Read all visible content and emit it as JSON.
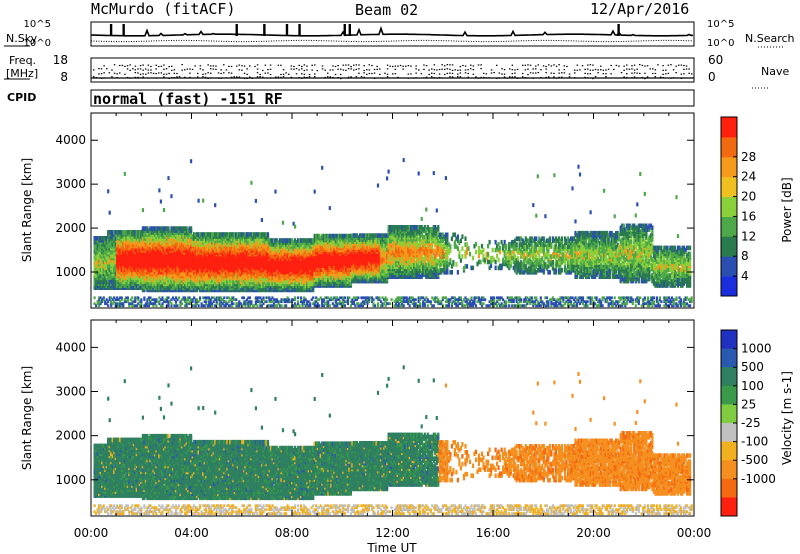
{
  "header": {
    "station": "McMurdo (fitACF)",
    "beam": "Beam 02",
    "date": "12/Apr/2016"
  },
  "noise_panel": {
    "left_label": "N.Sky",
    "right_label": "N.Search",
    "left_ticks": [
      "10^5",
      "10^0"
    ],
    "right_ticks": [
      "10^5",
      "10^0"
    ]
  },
  "freq_panel": {
    "left_label_line1": "Freq.",
    "left_label_line2": "[MHz]",
    "right_label": "Nave",
    "left_ticks": [
      "18",
      "8"
    ],
    "right_ticks": [
      "60",
      "0"
    ]
  },
  "cpid": {
    "label": "CPID",
    "text": "normal (fast) -151 RF"
  },
  "x_axis": {
    "label": "Time UT",
    "ticks": [
      "00:00",
      "04:00",
      "08:00",
      "12:00",
      "16:00",
      "20:00",
      "00:00"
    ]
  },
  "chart_data": [
    {
      "type": "heatmap",
      "panel": "power",
      "ylabel": "Slant Range [km]",
      "yticks": [
        "1000",
        "2000",
        "3000",
        "4000"
      ],
      "ylim": [
        180,
        4620
      ],
      "xlim_hours": [
        0,
        24
      ],
      "colorbar": {
        "label": "Power [dB]",
        "ticks": [
          "4",
          "8",
          "12",
          "16",
          "20",
          "24",
          "28"
        ],
        "colors": [
          "#1a2ee0",
          "#2b4fb0",
          "#2a7a50",
          "#4da84a",
          "#8ad03a",
          "#f0c020",
          "#f59a1a",
          "#f26a10",
          "#ff2010"
        ]
      },
      "legend_position": "right"
    },
    {
      "type": "heatmap",
      "panel": "velocity",
      "ylabel": "Slant Range [km]",
      "yticks": [
        "1000",
        "2000",
        "3000",
        "4000"
      ],
      "ylim": [
        180,
        4620
      ],
      "xlim_hours": [
        0,
        24
      ],
      "colorbar": {
        "label": "Velocity [m s-1]",
        "ticks": [
          "1000",
          "500",
          "100",
          "25",
          "-25",
          "-100",
          "-500",
          "-1000"
        ],
        "colors": [
          "#2030c0",
          "#2a5ab0",
          "#2f8060",
          "#3a9a4a",
          "#80cc40",
          "#c0c0c0",
          "#f0b020",
          "#f59020",
          "#f56a10",
          "#ff2010"
        ]
      },
      "legend_position": "right"
    }
  ]
}
